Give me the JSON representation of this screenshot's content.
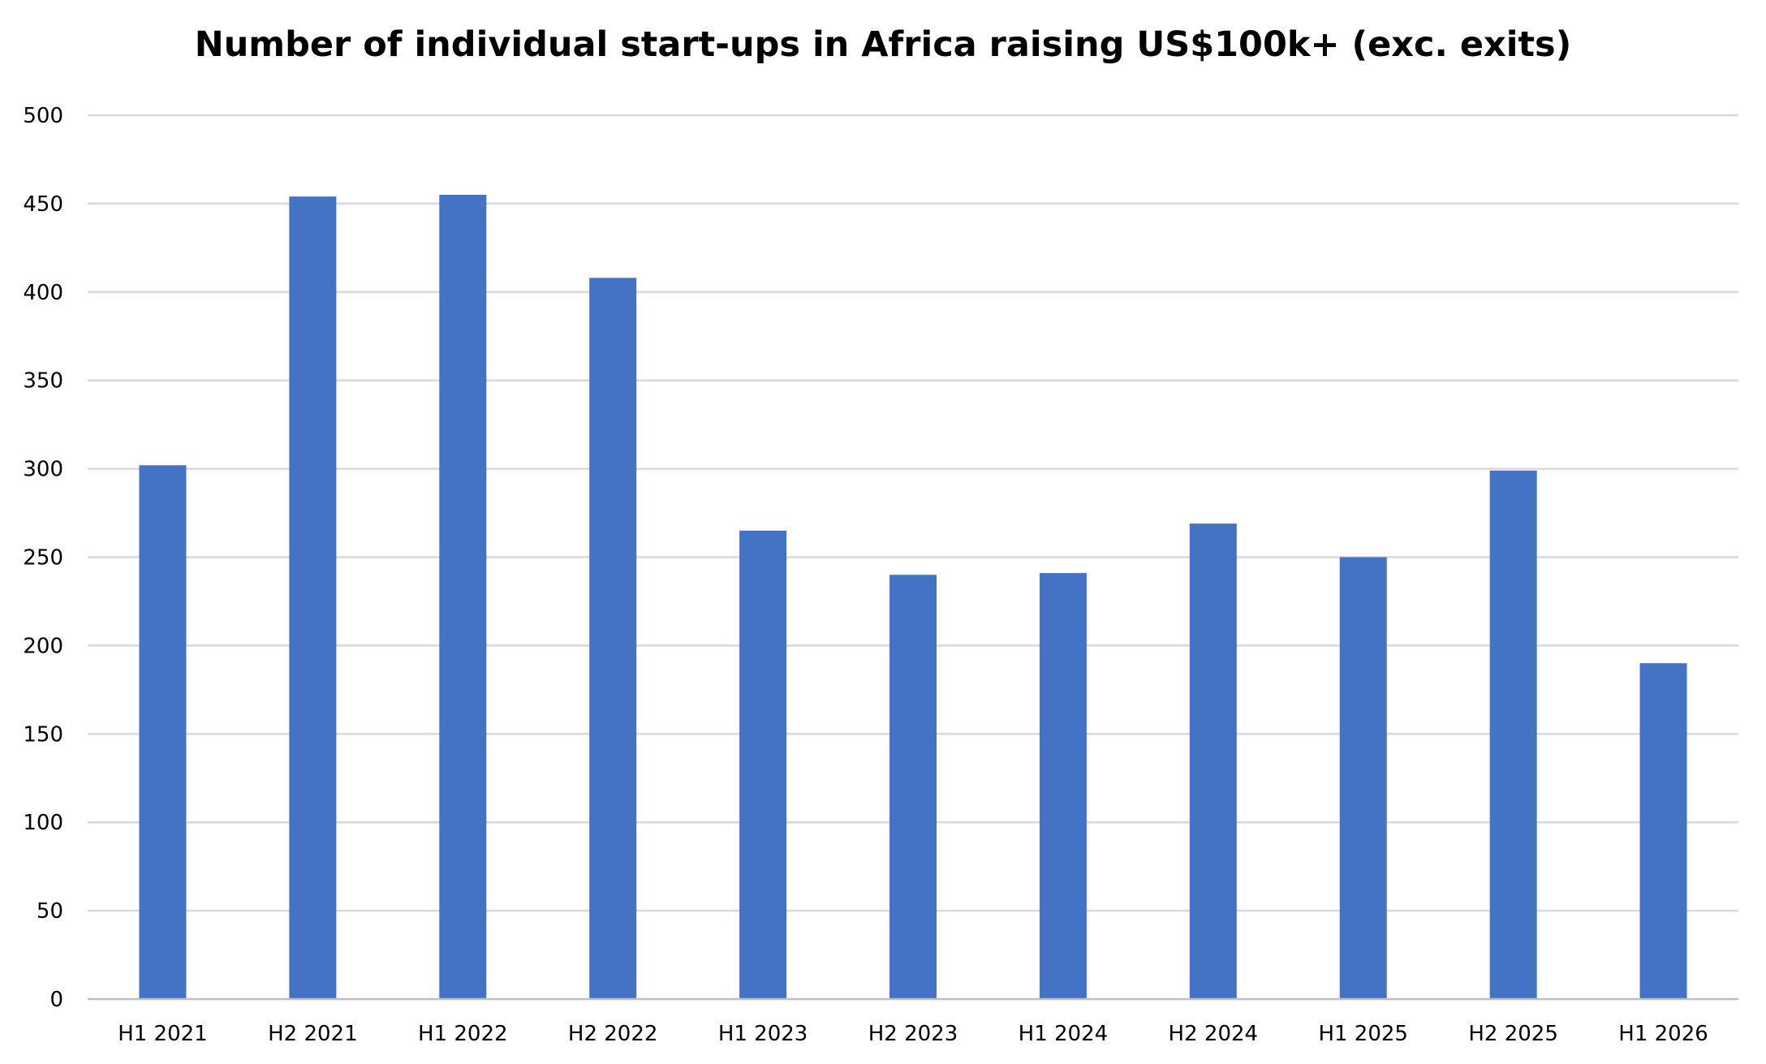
{
  "chart_data": {
    "type": "bar",
    "title": "Number of individual start-ups in Africa raising US$100k+ (exc. exits)",
    "xlabel": "",
    "ylabel": "",
    "categories": [
      "H1 2021",
      "H2 2021",
      "H1 2022",
      "H2 2022",
      "H1 2023",
      "H2 2023",
      "H1 2024",
      "H2 2024",
      "H1 2025",
      "H2 2025",
      "H1 2026"
    ],
    "values": [
      302,
      454,
      455,
      408,
      265,
      240,
      241,
      269,
      250,
      299,
      190
    ],
    "ylim": [
      0,
      500
    ],
    "yticks": [
      0,
      50,
      100,
      150,
      200,
      250,
      300,
      350,
      400,
      450,
      500
    ],
    "grid": true,
    "legend": "none",
    "colors": {
      "bar": "#4472C4",
      "grid": "#D9D9D9",
      "axis": "#BFBFBF",
      "text": "#000000"
    }
  }
}
